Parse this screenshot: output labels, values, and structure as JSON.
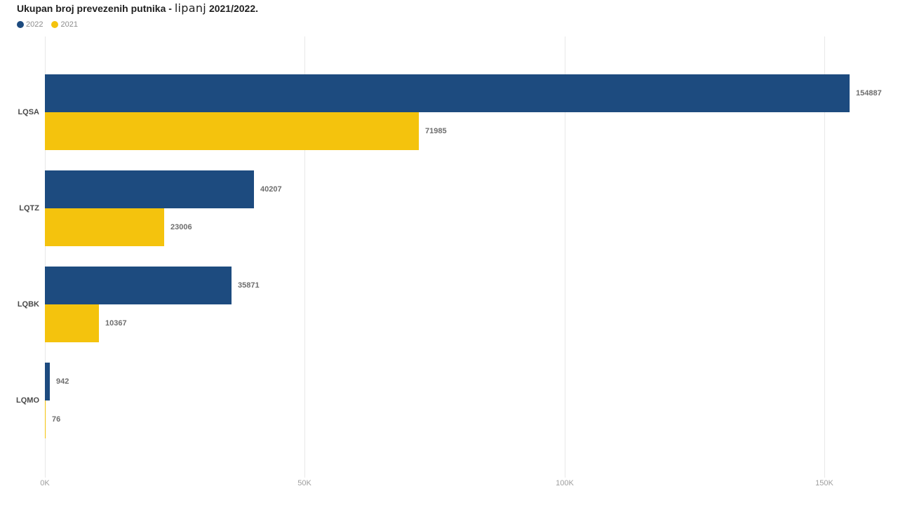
{
  "title": {
    "prefix": "Ukupan broj prevezenih putnika - ",
    "month": "lipanj",
    "suffix": " 2021/2022."
  },
  "legend": {
    "items": [
      {
        "label": "2022",
        "color": "#1d4b7f"
      },
      {
        "label": "2021",
        "color": "#f4c30d"
      }
    ]
  },
  "chart_data": {
    "type": "bar",
    "orientation": "horizontal",
    "title": "Ukupan broj prevezenih putnika - lipanj 2021/2022.",
    "categories": [
      "LQSA",
      "LQTZ",
      "LQBK",
      "LQMO"
    ],
    "series": [
      {
        "name": "2022",
        "color": "#1d4b7f",
        "values": [
          154887,
          40207,
          35871,
          942
        ]
      },
      {
        "name": "2021",
        "color": "#f4c30d",
        "values": [
          71985,
          23006,
          10367,
          76
        ]
      }
    ],
    "xticks": {
      "values": [
        0,
        50000,
        100000,
        150000
      ],
      "labels": [
        "0K",
        "50K",
        "100K",
        "150K"
      ]
    },
    "xlim": [
      0,
      164000
    ],
    "grid": true,
    "legend_position": "top-left",
    "value_labels": true
  },
  "colors": {
    "background": "#ffffff",
    "grid": "#e8e8e8",
    "title": "#1f1f1f",
    "legend_text": "#8c8c8c",
    "category_label": "#4a4a4a",
    "value_label": "#6e6e6e",
    "tick_label": "#9e9e9e"
  }
}
